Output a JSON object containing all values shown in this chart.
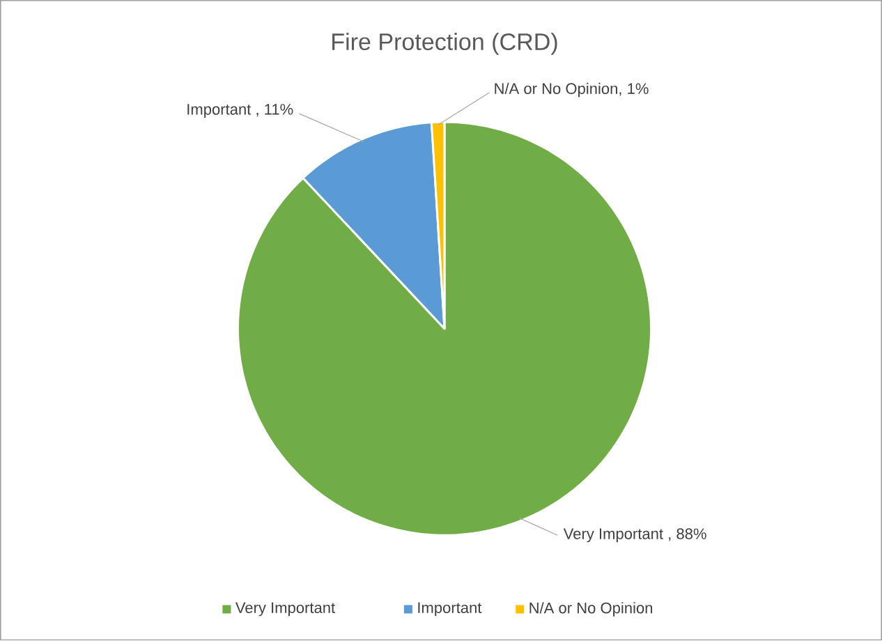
{
  "chart_data": {
    "type": "pie",
    "title": "Fire Protection (CRD)",
    "categories": [
      "Very Important",
      "Important",
      "N/A or No Opinion"
    ],
    "values": [
      88,
      11,
      1
    ],
    "colors": [
      "#70ad47",
      "#5b9bd5",
      "#ffc000"
    ],
    "value_labels": [
      "Very Important , 88%",
      "Important , 11%",
      "N/A or No Opinion, 1%"
    ],
    "legend": "bottom"
  }
}
